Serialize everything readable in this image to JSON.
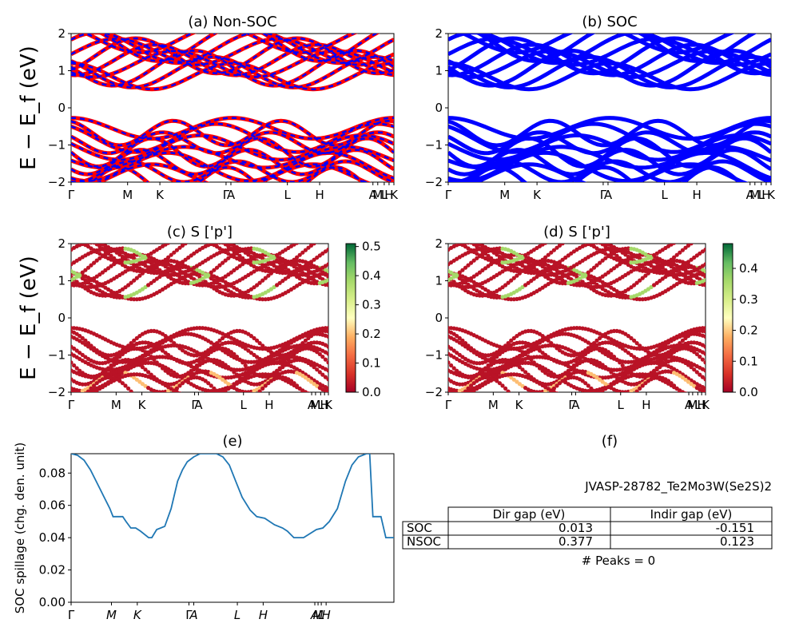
{
  "colors": {
    "bands_red": "#ff0000",
    "bands_blue": "#0000ff",
    "line": "#1f77b4",
    "axis": "#000000"
  },
  "labels": {
    "ylabel": "E − E_f (eV)",
    "ylabel_e": "SOC spillage (chg. den. unit)",
    "f_title": "(f)",
    "f_subtitle": "JVASP-28782_Te2Mo3W(Se2S)2",
    "f_peaks": "# Peaks = 0"
  },
  "chart_data": [
    {
      "id": "a",
      "type": "line",
      "title": "(a) Non-SOC",
      "ylim": [
        -2,
        2
      ],
      "yticks": [
        -2,
        -1,
        0,
        1,
        2
      ],
      "kpath": [
        "Γ",
        "M",
        "K",
        "Γ",
        "A",
        "L",
        "H",
        "A",
        "M",
        "L",
        "H",
        "K"
      ],
      "kpath_pos": [
        0,
        0.175,
        0.275,
        0.48,
        0.495,
        0.67,
        0.77,
        0.935,
        0.95,
        0.97,
        0.985,
        1
      ],
      "series": [
        {
          "color": "#ff0000",
          "dashed": false
        },
        {
          "color": "#0000ff",
          "dashed": true
        }
      ]
    },
    {
      "id": "b",
      "type": "line",
      "title": "(b) SOC",
      "ylim": [
        -2,
        2
      ],
      "yticks": [
        -2,
        -1,
        0,
        1,
        2
      ],
      "kpath": [
        "Γ",
        "M",
        "K",
        "Γ",
        "A",
        "L",
        "H",
        "A",
        "M",
        "L",
        "H",
        "K"
      ],
      "kpath_pos": [
        0,
        0.175,
        0.275,
        0.48,
        0.495,
        0.67,
        0.77,
        0.935,
        0.95,
        0.97,
        0.985,
        1
      ],
      "series": [
        {
          "color": "#0000ff"
        }
      ]
    },
    {
      "id": "c",
      "type": "scatter",
      "title": "(c)  S ['p']",
      "ylim": [
        -2,
        2
      ],
      "yticks": [
        -2,
        -1,
        0,
        1,
        2
      ],
      "kpath": [
        "Γ",
        "M",
        "K",
        "Γ",
        "A",
        "L",
        "H",
        "A",
        "M",
        "L",
        "H",
        "K"
      ],
      "kpath_pos": [
        0,
        0.175,
        0.275,
        0.48,
        0.495,
        0.67,
        0.77,
        0.935,
        0.95,
        0.97,
        0.985,
        1
      ],
      "colorbar": {
        "min": 0.0,
        "max": 0.51,
        "ticks": [
          "0.0",
          "0.1",
          "0.2",
          "0.3",
          "0.4",
          "0.5"
        ],
        "tick_values": [
          0,
          0.1,
          0.2,
          0.3,
          0.4,
          0.5
        ],
        "cmap": "RdYlGn"
      }
    },
    {
      "id": "d",
      "type": "scatter",
      "title": "(d) S ['p']",
      "ylim": [
        -2,
        2
      ],
      "yticks": [
        -2,
        -1,
        0,
        1,
        2
      ],
      "kpath": [
        "Γ",
        "M",
        "K",
        "Γ",
        "A",
        "L",
        "H",
        "A",
        "M",
        "L",
        "H",
        "K"
      ],
      "kpath_pos": [
        0,
        0.175,
        0.275,
        0.48,
        0.495,
        0.67,
        0.77,
        0.935,
        0.95,
        0.97,
        0.985,
        1
      ],
      "colorbar": {
        "min": 0.0,
        "max": 0.48,
        "ticks": [
          "0.0",
          "0.1",
          "0.2",
          "0.3",
          "0.4"
        ],
        "tick_values": [
          0,
          0.1,
          0.2,
          0.3,
          0.4
        ],
        "cmap": "RdYlGn"
      }
    },
    {
      "id": "e",
      "type": "line",
      "title": "(e)",
      "ylabel": "SOC spillage (chg. den. unit)",
      "ylim": [
        0.0,
        0.092
      ],
      "yticks": [
        0.0,
        0.02,
        0.04,
        0.06,
        0.08
      ],
      "ytick_labels": [
        "0.00",
        "0.02",
        "0.04",
        "0.06",
        "0.08"
      ],
      "kpath": [
        "Γ",
        "M",
        "K",
        "Γ",
        "A",
        "L",
        "H",
        "A",
        "M",
        "L",
        "H"
      ],
      "kpath_pos": [
        0,
        0.125,
        0.205,
        0.365,
        0.38,
        0.515,
        0.595,
        0.755,
        0.765,
        0.775,
        0.79
      ],
      "series": [
        {
          "x": [
            0.0,
            0.02,
            0.04,
            0.06,
            0.08,
            0.1,
            0.12,
            0.13,
            0.16,
            0.17,
            0.185,
            0.2,
            0.215,
            0.24,
            0.25,
            0.265,
            0.29,
            0.31,
            0.33,
            0.345,
            0.36,
            0.38,
            0.4,
            0.43,
            0.45,
            0.47,
            0.49,
            0.51,
            0.53,
            0.555,
            0.575,
            0.6,
            0.63,
            0.655,
            0.67,
            0.69,
            0.72,
            0.76,
            0.78,
            0.8,
            0.825,
            0.85,
            0.87,
            0.89,
            0.915,
            0.925,
            0.935,
            0.96,
            0.975,
            1.0
          ],
          "y": [
            0.092,
            0.091,
            0.088,
            0.082,
            0.074,
            0.066,
            0.058,
            0.053,
            0.053,
            0.05,
            0.046,
            0.046,
            0.044,
            0.04,
            0.04,
            0.045,
            0.047,
            0.058,
            0.075,
            0.082,
            0.087,
            0.09,
            0.092,
            0.092,
            0.092,
            0.09,
            0.085,
            0.075,
            0.065,
            0.057,
            0.053,
            0.052,
            0.048,
            0.046,
            0.044,
            0.04,
            0.04,
            0.045,
            0.046,
            0.05,
            0.058,
            0.075,
            0.085,
            0.09,
            0.092,
            0.092,
            0.053,
            0.053,
            0.04,
            0.04
          ]
        }
      ]
    },
    {
      "id": "f",
      "type": "table",
      "title": "(f)",
      "subtitle": "JVASP-28782_Te2Mo3W(Se2S)2",
      "columns": [
        "",
        "Dir gap (eV)",
        "Indir gap (eV)"
      ],
      "rows": [
        [
          "SOC",
          "0.013",
          "-0.151"
        ],
        [
          "NSOC",
          "0.377",
          "0.123"
        ]
      ],
      "footer": "# Peaks = 0"
    }
  ]
}
